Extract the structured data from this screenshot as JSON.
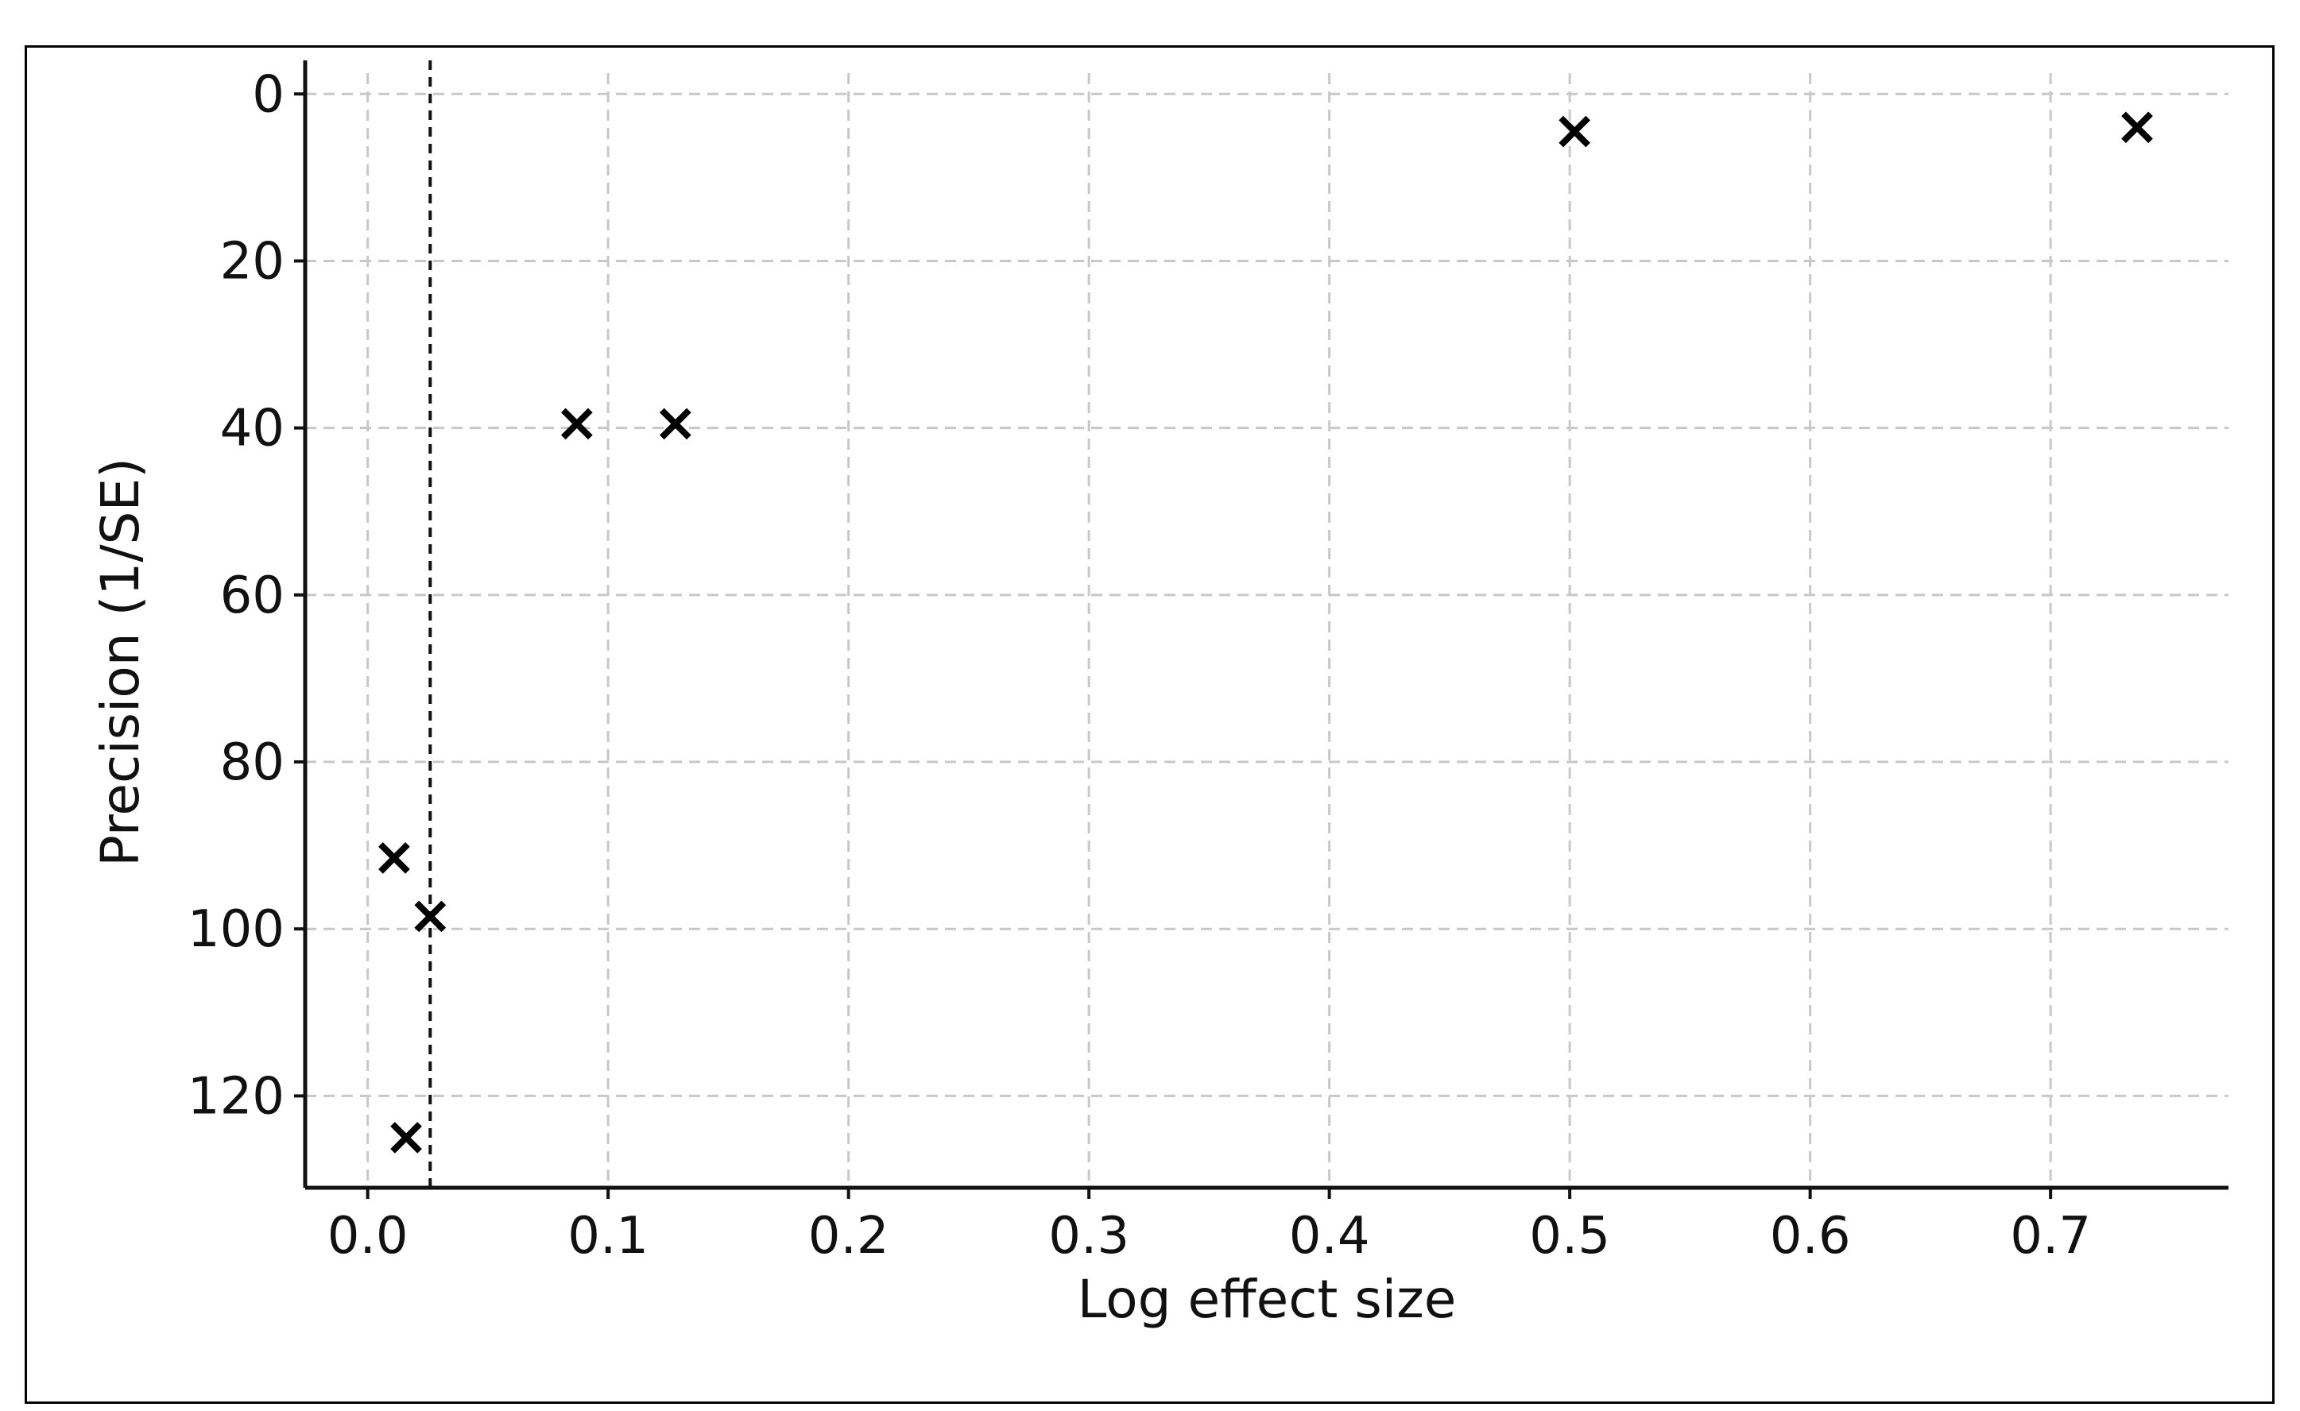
{
  "chart_data": {
    "type": "scatter",
    "title": "",
    "xlabel": "Log effect size",
    "ylabel": "Precision (1/SE)",
    "xlim": [
      -0.026,
      0.774
    ],
    "ylim": [
      131,
      -2.5
    ],
    "y_inverted": true,
    "x_ticks": [
      "0.0",
      "0.1",
      "0.2",
      "0.3",
      "0.4",
      "0.5",
      "0.6",
      "0.7"
    ],
    "y_ticks": [
      "0",
      "20",
      "40",
      "60",
      "80",
      "100",
      "120"
    ],
    "grid": true,
    "marker": "x",
    "marker_color": "#000000",
    "reference_line_x": 0.026,
    "points": [
      {
        "x": 0.011,
        "y": 91.5
      },
      {
        "x": 0.026,
        "y": 98.5
      },
      {
        "x": 0.016,
        "y": 125
      },
      {
        "x": 0.087,
        "y": 39.5
      },
      {
        "x": 0.128,
        "y": 39.5
      },
      {
        "x": 0.502,
        "y": 4.5
      },
      {
        "x": 0.736,
        "y": 4
      }
    ]
  }
}
